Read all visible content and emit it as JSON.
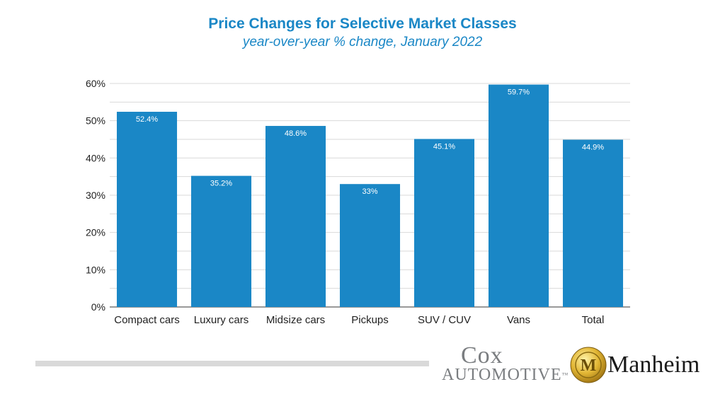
{
  "chart_data": {
    "type": "bar",
    "title": "Price Changes for Selective Market Classes",
    "subtitle": "year-over-year % change, January 2022",
    "categories": [
      "Compact cars",
      "Luxury cars",
      "Midsize cars",
      "Pickups",
      "SUV / CUV",
      "Vans",
      "Total"
    ],
    "values": [
      52.4,
      35.2,
      48.6,
      33,
      45.1,
      59.7,
      44.9
    ],
    "data_labels": [
      "52.4%",
      "35.2%",
      "48.6%",
      "33%",
      "45.1%",
      "59.7%",
      "44.9%"
    ],
    "y_ticks": [
      "0%",
      "10%",
      "20%",
      "30%",
      "40%",
      "50%",
      "60%"
    ],
    "ylim": [
      0,
      60
    ],
    "grid": true,
    "legend": "none",
    "bar_color": "#1a87c6"
  },
  "branding": {
    "cox_top": "Cox",
    "cox_bottom": "AUTOMOTIVE",
    "cox_tm": "™",
    "manheim": "Manheim",
    "manheim_emblem": "M"
  }
}
